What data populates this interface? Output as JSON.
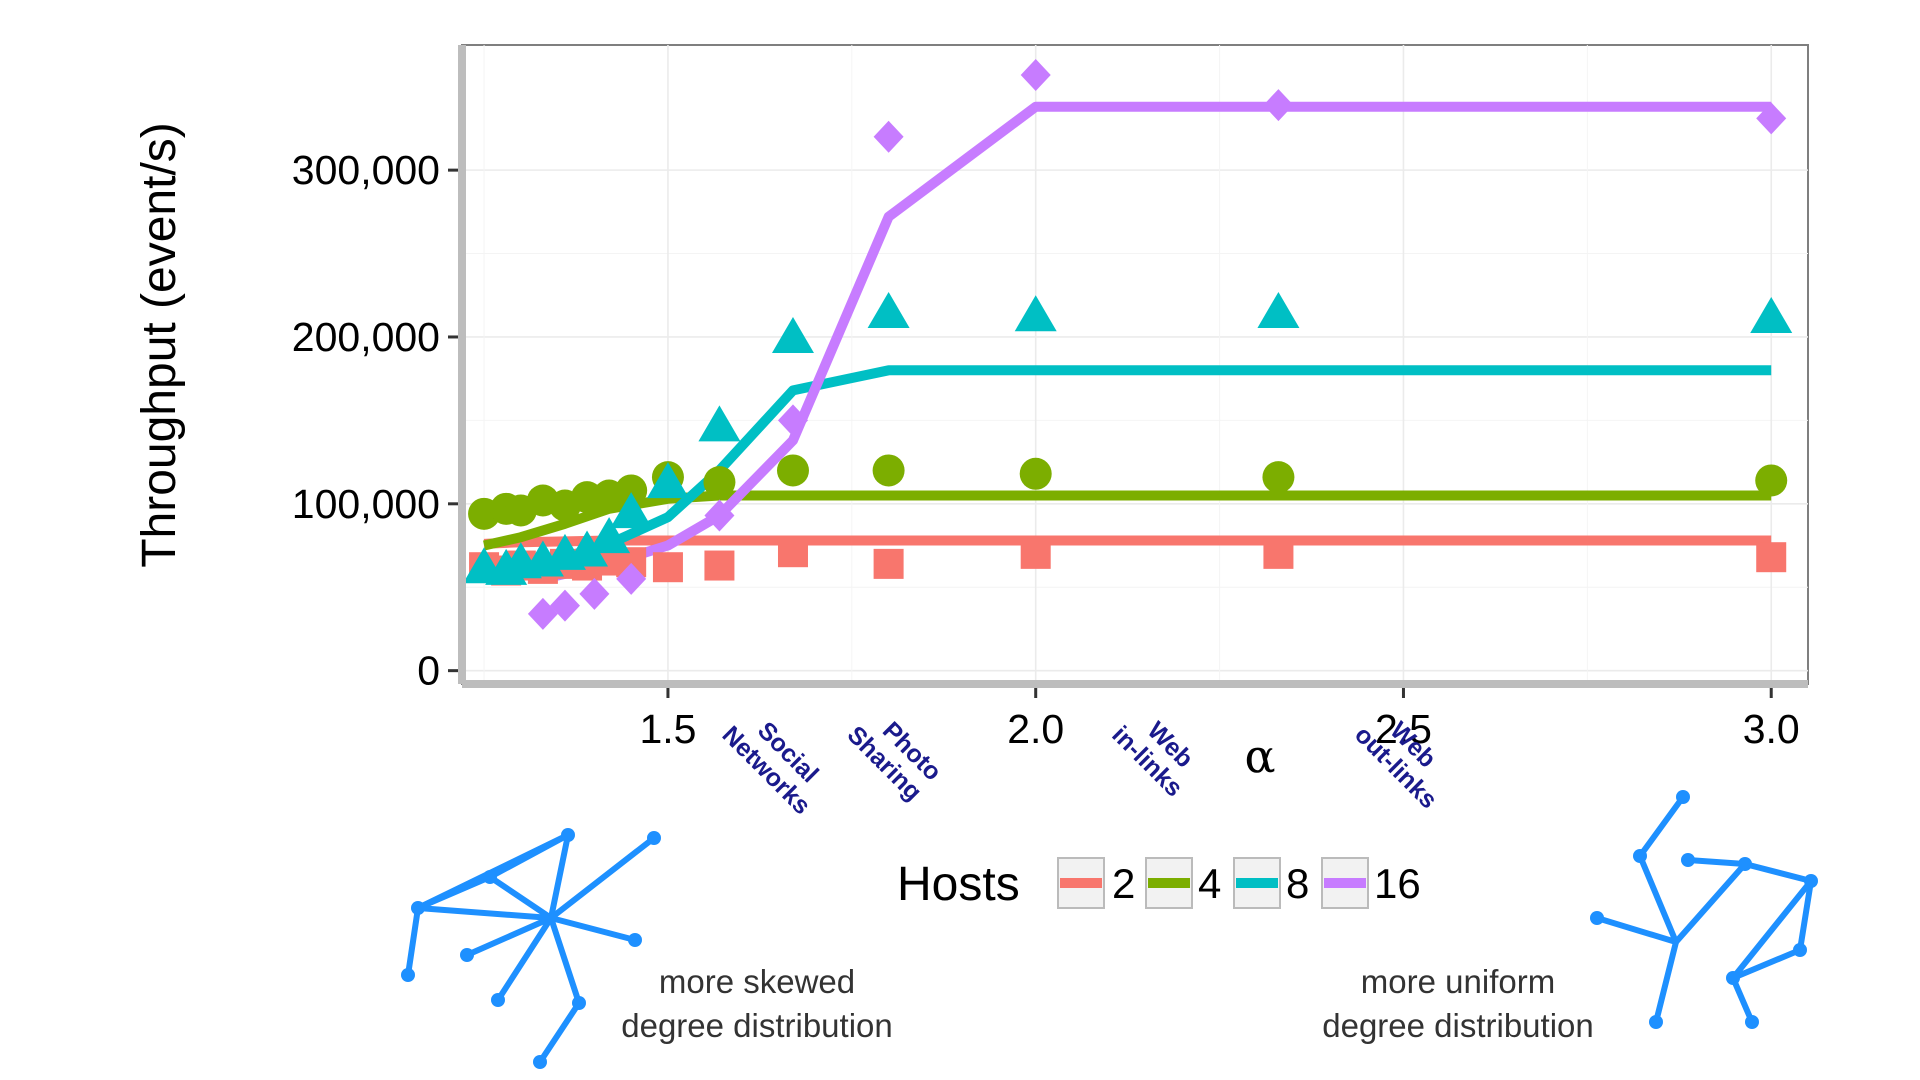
{
  "chart_data": {
    "type": "line",
    "xlabel": "α",
    "ylabel": "Throughput (event/s)",
    "xlim": [
      1.22,
      3.05
    ],
    "ylim": [
      -8000,
      375000
    ],
    "x_ticks": [
      {
        "value": 1.5,
        "label": "1.5"
      },
      {
        "value": 2.0,
        "label": "2.0"
      },
      {
        "value": 2.5,
        "label": "2.5"
      },
      {
        "value": 3.0,
        "label": "3.0"
      }
    ],
    "y_ticks": [
      {
        "value": 0,
        "label": "0"
      },
      {
        "value": 100000,
        "label": "100,000"
      },
      {
        "value": 200000,
        "label": "200,000"
      },
      {
        "value": 300000,
        "label": "300,000"
      }
    ],
    "grid": true,
    "legend": {
      "title": "Hosts",
      "placement": "bottom"
    },
    "x_annotations": [
      {
        "x": 1.62,
        "lines": [
          "Social",
          "Networks"
        ]
      },
      {
        "x": 1.79,
        "lines": [
          "Photo",
          "Sharing"
        ]
      },
      {
        "x": 2.15,
        "lines": [
          "Web",
          "in-links"
        ]
      },
      {
        "x": 2.48,
        "lines": [
          "Web",
          "out-links"
        ]
      }
    ],
    "series": [
      {
        "name": "2",
        "color": "#F8766D",
        "marker": "square",
        "points_x": [
          1.25,
          1.28,
          1.3,
          1.33,
          1.36,
          1.39,
          1.42,
          1.45,
          1.5,
          1.57,
          1.67,
          1.8,
          2.0,
          2.33,
          3.0
        ],
        "points_y": [
          62000,
          60000,
          63000,
          61000,
          64000,
          63000,
          66000,
          65000,
          62000,
          63000,
          71000,
          64000,
          70000,
          70000,
          68000
        ],
        "line_x": [
          1.25,
          1.3,
          1.36,
          1.42,
          1.5,
          1.57,
          1.67,
          1.8,
          2.0,
          2.33,
          3.0
        ],
        "line_y": [
          76000,
          77000,
          77500,
          78000,
          78000,
          78000,
          78000,
          78000,
          78000,
          78000,
          78000
        ]
      },
      {
        "name": "4",
        "color": "#7CAE00",
        "marker": "circle",
        "points_x": [
          1.25,
          1.28,
          1.3,
          1.33,
          1.36,
          1.39,
          1.42,
          1.45,
          1.5,
          1.57,
          1.67,
          1.8,
          2.0,
          2.33,
          3.0
        ],
        "points_y": [
          94000,
          97000,
          96000,
          102000,
          99000,
          104000,
          105000,
          108000,
          116000,
          113000,
          120000,
          120000,
          118000,
          116000,
          114000
        ],
        "line_x": [
          1.25,
          1.3,
          1.36,
          1.42,
          1.5,
          1.57,
          1.67,
          1.8,
          2.0,
          2.33,
          3.0
        ],
        "line_y": [
          75000,
          80000,
          88000,
          97000,
          103000,
          105000,
          105000,
          105000,
          105000,
          105000,
          105000
        ]
      },
      {
        "name": "8",
        "color": "#00BFC4",
        "marker": "triangle",
        "points_x": [
          1.25,
          1.28,
          1.3,
          1.33,
          1.36,
          1.39,
          1.42,
          1.45,
          1.5,
          1.57,
          1.67,
          1.8,
          2.0,
          2.33,
          3.0
        ],
        "points_y": [
          62000,
          61000,
          65000,
          66000,
          70000,
          72000,
          80000,
          95000,
          113000,
          147000,
          200000,
          215000,
          213000,
          215000,
          212000
        ],
        "line_x": [
          1.25,
          1.3,
          1.36,
          1.42,
          1.5,
          1.57,
          1.67,
          1.8,
          2.0,
          2.33,
          3.0
        ],
        "line_y": [
          58000,
          63000,
          68000,
          76000,
          92000,
          120000,
          168000,
          180000,
          180000,
          180000,
          180000
        ]
      },
      {
        "name": "16",
        "color": "#C77CFF",
        "marker": "diamond",
        "points_x": [
          1.33,
          1.36,
          1.4,
          1.45,
          1.57,
          1.67,
          1.8,
          2.0,
          2.33,
          3.0
        ],
        "points_y": [
          34000,
          39000,
          46000,
          55000,
          93000,
          150000,
          320000,
          357000,
          339000,
          331000
        ],
        "line_x": [
          1.33,
          1.36,
          1.42,
          1.5,
          1.57,
          1.67,
          1.8,
          2.0,
          2.33,
          3.0
        ],
        "line_y": [
          55000,
          58000,
          64000,
          75000,
          93000,
          138000,
          272000,
          338000,
          338000,
          338000
        ]
      }
    ]
  },
  "captions": {
    "left": [
      "more skewed",
      "degree distribution"
    ],
    "right": [
      "more uniform",
      "degree distribution"
    ]
  },
  "graph_icon_color": "#1E90FF"
}
